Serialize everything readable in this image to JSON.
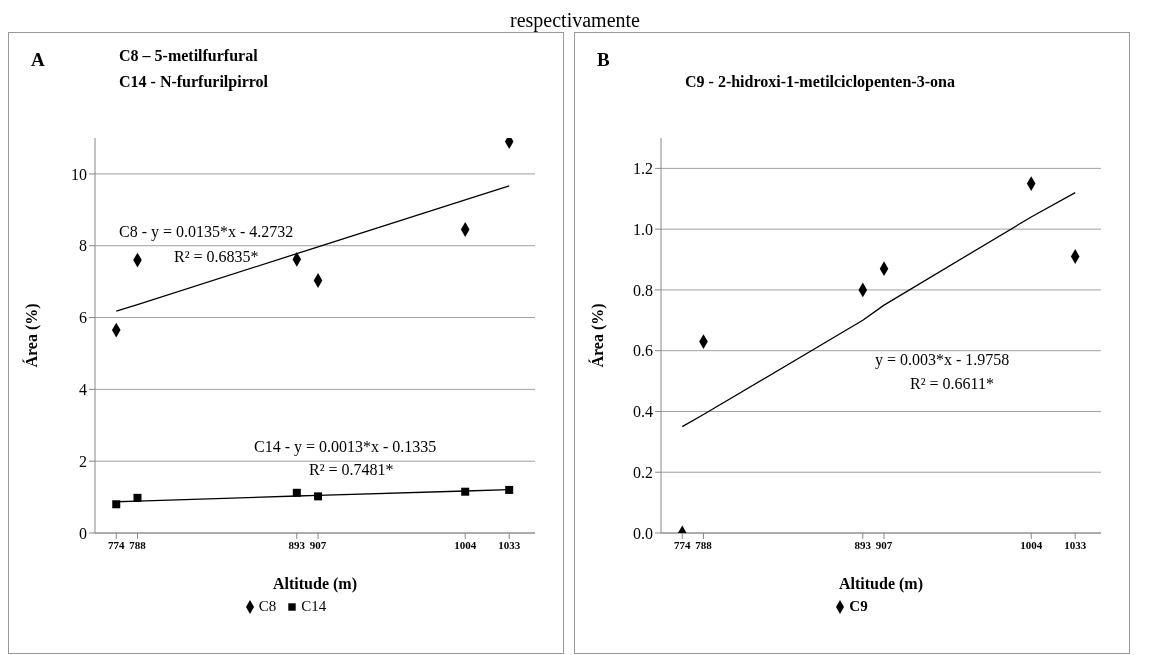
{
  "chart_data": [
    {
      "type": "scatter",
      "title": "C8 – 5-metilfurfural",
      "subtitle": "C14 - N-furfurilpirrol",
      "xlabel": "Altitude (m)",
      "ylabel": "Área (%)",
      "annotations": [
        "A",
        "C8 - y = 0.0135*x - 4.2732",
        "R² = 0.6835*",
        "C14 - y = 0.0013*x - 0.1335",
        "R² = 0.7481*",
        "respectivamente"
      ],
      "x": [
        774,
        788,
        893,
        907,
        1004,
        1033
      ],
      "series": [
        {
          "name": "C8",
          "marker": "diamond",
          "color": "#000000",
          "values": [
            5.65,
            7.6,
            7.62,
            7.03,
            8.45,
            10.9
          ]
        },
        {
          "name": "C14",
          "marker": "square",
          "color": "#000000",
          "values": [
            0.8,
            0.98,
            1.12,
            1.02,
            1.15,
            1.2
          ]
        },
        {
          "type": "line",
          "color": "#000000",
          "values": [
            6.18,
            6.36,
            7.78,
            7.97,
            9.28,
            9.67
          ]
        },
        {
          "type": "line",
          "color": "#000000",
          "values": [
            0.87,
            0.89,
            1.03,
            1.05,
            1.17,
            1.21
          ]
        }
      ],
      "xlim": [
        760,
        1050
      ],
      "xticks": [
        774,
        788,
        893,
        907,
        1004,
        1033
      ],
      "ylim": [
        0,
        11
      ],
      "yticks": [
        0,
        2,
        4,
        6,
        8,
        10
      ],
      "grid": "y",
      "legend": "bottom"
    },
    {
      "type": "scatter",
      "title": "C9 - 2-hidroxi-1-metilciclopenten-3-ona",
      "xlabel": "Altitude (m)",
      "ylabel": "Área (%)",
      "annotations": [
        "B",
        "y = 0.003*x - 1.9758",
        "R² = 0.6611*"
      ],
      "x": [
        774,
        788,
        893,
        907,
        1004,
        1033
      ],
      "series": [
        {
          "name": "C9",
          "marker": "diamond",
          "color": "#000000",
          "values": [
            0.0,
            0.63,
            0.8,
            0.87,
            1.15,
            0.91
          ]
        },
        {
          "type": "line",
          "color": "#000000",
          "values": [
            0.35,
            0.39,
            0.7,
            0.75,
            1.04,
            1.12
          ]
        }
      ],
      "xlim": [
        760,
        1050
      ],
      "xticks": [
        774,
        788,
        893,
        907,
        1004,
        1033
      ],
      "ylim": [
        0,
        1.3
      ],
      "yticks": [
        {
          "value": 0,
          "label": "0.0"
        },
        0.2,
        0.4,
        0.6,
        0.8,
        {
          "value": 1,
          "label": "1.0"
        },
        1.2
      ],
      "grid": "y",
      "legend": "bottom"
    }
  ]
}
